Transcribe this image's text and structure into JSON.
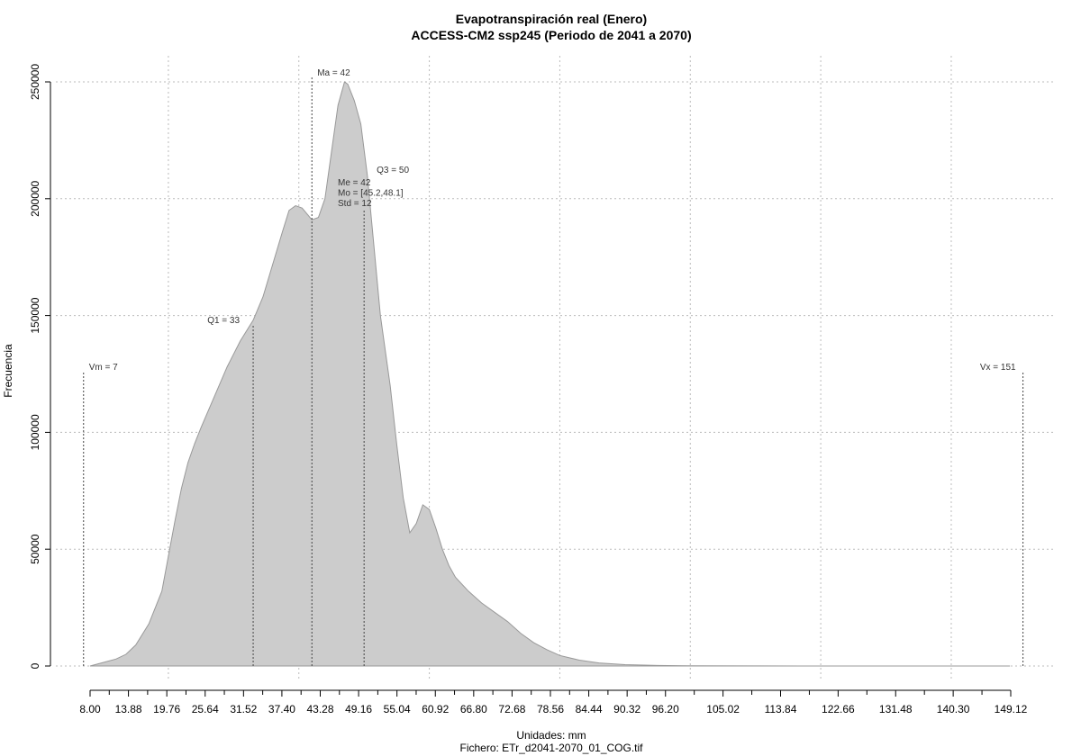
{
  "chart_data": {
    "type": "area",
    "title": "Evapotranspiración real (Enero)",
    "subtitle": "ACCESS-CM2 ssp245 (Periodo de 2041 a 2070)",
    "xlabel": "Unidades: mm",
    "caption": "Fichero: ETr_d2041-2070_01_COG.tif",
    "ylabel": "Frecuencia",
    "color": "#cccccc",
    "x": [
      8,
      10,
      12,
      13.5,
      15,
      17,
      19,
      20,
      21,
      22,
      23,
      24,
      25,
      27,
      29,
      31,
      33,
      34.5,
      36,
      37.5,
      38.5,
      39.5,
      40.5,
      42,
      43,
      44,
      45,
      46,
      47,
      47.5,
      48.5,
      49.5,
      50.5,
      51.5,
      52.5,
      54,
      55,
      56,
      57,
      58,
      59,
      60,
      61,
      62,
      63,
      64,
      66,
      68,
      70,
      72,
      74,
      76,
      78,
      80,
      83,
      86,
      90,
      95,
      100,
      110,
      130,
      149
    ],
    "values": [
      0,
      1500,
      3000,
      5000,
      9000,
      18000,
      32000,
      47000,
      62000,
      76000,
      87000,
      95000,
      102000,
      115000,
      128000,
      139000,
      148000,
      158000,
      172000,
      186000,
      195000,
      197000,
      196000,
      191000,
      192000,
      200000,
      220000,
      240000,
      250000,
      249000,
      242000,
      232000,
      210000,
      180000,
      150000,
      120000,
      95000,
      72000,
      57000,
      61000,
      69000,
      67000,
      59000,
      50000,
      43000,
      38000,
      32000,
      27000,
      23000,
      19000,
      14000,
      10000,
      7000,
      4500,
      2500,
      1300,
      600,
      250,
      100,
      30,
      5,
      0
    ],
    "xlim": [
      8,
      149.12
    ],
    "ylim": [
      0,
      250000
    ],
    "xticks": [
      {
        "value": 8,
        "label": "8.00"
      },
      13.88,
      19.76,
      25.64,
      31.52,
      {
        "value": 37.4,
        "label": "37.40"
      },
      43.28,
      49.16,
      55.04,
      60.92,
      {
        "value": 66.8,
        "label": "66.80"
      },
      72.68,
      78.56,
      84.44,
      90.32,
      {
        "value": 96.2,
        "label": "96.20"
      },
      105.02,
      113.84,
      122.66,
      131.48,
      {
        "value": 140.3,
        "label": "140.30"
      },
      149.12
    ],
    "yticks": [
      0,
      50000,
      100000,
      150000,
      200000,
      250000
    ],
    "xgrid": [
      20,
      40,
      60,
      80,
      100,
      120,
      140
    ],
    "grid": true,
    "annotations": [
      {
        "label": "Vm = 7",
        "x": 7,
        "y": 126000
      },
      {
        "label": "Q1 = 33",
        "x": 33,
        "y": 146000
      },
      {
        "label": "Ma = 42",
        "x": 42,
        "y": 252000
      },
      {
        "label": "Q3 = 50",
        "x": 50,
        "y": 195000
      },
      {
        "label": "Vx = 151",
        "x": 151,
        "y": 126000
      }
    ],
    "stats": [
      "Me = 42",
      "Mo = [45.2,48.1]",
      "Std = 12"
    ]
  }
}
